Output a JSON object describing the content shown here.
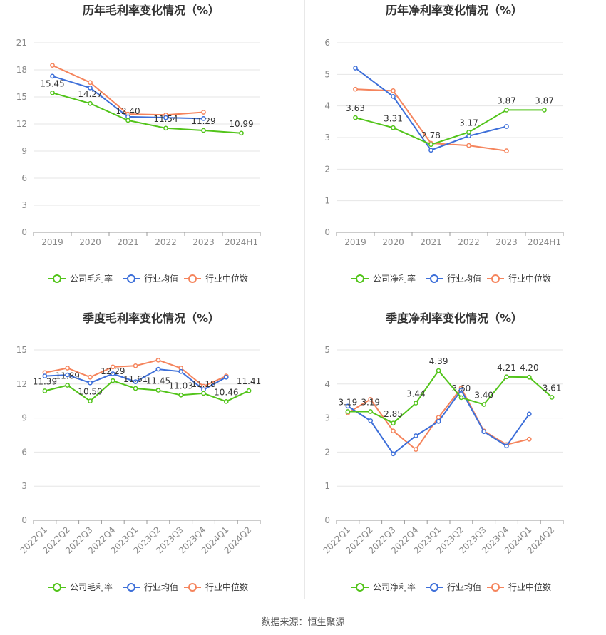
{
  "colors": {
    "company": "#52c41a",
    "industry_avg": "#3d6fd9",
    "industry_median": "#f5845c",
    "grid": "#e6e6e6",
    "axis_text": "#888888",
    "title_text": "#333333",
    "label_text": "#333333"
  },
  "legend_icons": [
    "line-circle-icon",
    "line-circle-icon",
    "line-circle-icon"
  ],
  "source": "数据来源：恒生聚源",
  "chart_data": [
    {
      "type": "line",
      "title": "历年毛利率变化情况（%）",
      "categories": [
        "2019",
        "2020",
        "2021",
        "2022",
        "2023",
        "2024H1"
      ],
      "yticks": [
        "0",
        "3",
        "6",
        "9",
        "12",
        "15",
        "18",
        "21"
      ],
      "ylim": [
        0,
        21
      ],
      "grid": true,
      "legend_position": "bottom",
      "series": [
        {
          "name": "公司毛利率",
          "key": "company",
          "values": [
            15.45,
            14.27,
            12.4,
            11.54,
            11.29,
            10.99
          ],
          "labels": [
            "15.45",
            "14.27",
            "12.40",
            "11.54",
            "11.29",
            "10.99"
          ]
        },
        {
          "name": "行业均值",
          "key": "industry_avg",
          "values": [
            17.3,
            16.0,
            12.8,
            12.7,
            12.6,
            null
          ]
        },
        {
          "name": "行业中位数",
          "key": "industry_median",
          "values": [
            18.5,
            16.6,
            13.1,
            13.0,
            13.3,
            null
          ]
        }
      ]
    },
    {
      "type": "line",
      "title": "历年净利率变化情况（%）",
      "categories": [
        "2019",
        "2020",
        "2021",
        "2022",
        "2023",
        "2024H1"
      ],
      "yticks": [
        "0",
        "1",
        "2",
        "3",
        "4",
        "5",
        "6"
      ],
      "ylim": [
        0,
        6
      ],
      "grid": true,
      "legend_position": "bottom",
      "series": [
        {
          "name": "公司净利率",
          "key": "company",
          "values": [
            3.63,
            3.31,
            2.78,
            3.17,
            3.87,
            3.87
          ],
          "labels": [
            "3.63",
            "3.31",
            "2.78",
            "3.17",
            "3.87",
            "3.87"
          ]
        },
        {
          "name": "行业均值",
          "key": "industry_avg",
          "values": [
            5.2,
            4.3,
            2.6,
            3.05,
            3.35,
            null
          ]
        },
        {
          "name": "行业中位数",
          "key": "industry_median",
          "values": [
            4.53,
            4.48,
            2.82,
            2.75,
            2.58,
            null
          ]
        }
      ]
    },
    {
      "type": "line",
      "title": "季度毛利率变化情况（%）",
      "categories": [
        "2022Q1",
        "2022Q2",
        "2022Q3",
        "2022Q4",
        "2023Q1",
        "2023Q2",
        "2023Q3",
        "2023Q4",
        "2024Q1",
        "2024Q2"
      ],
      "yticks": [
        "0",
        "3",
        "6",
        "9",
        "12",
        "15"
      ],
      "ylim": [
        0,
        15
      ],
      "grid": true,
      "rotate_ticks": true,
      "legend_position": "bottom",
      "series": [
        {
          "name": "公司毛利率",
          "key": "company",
          "values": [
            11.39,
            11.89,
            10.5,
            12.29,
            11.61,
            11.45,
            11.03,
            11.18,
            10.46,
            11.41
          ],
          "labels": [
            "11.39",
            "11.89",
            "10.50",
            "12.29",
            "11.61",
            "11.45",
            "11.03",
            "11.18",
            "10.46",
            "11.41"
          ]
        },
        {
          "name": "行业均值",
          "key": "industry_avg",
          "values": [
            12.7,
            12.8,
            12.1,
            12.9,
            12.2,
            13.3,
            13.1,
            11.5,
            12.6,
            null
          ]
        },
        {
          "name": "行业中位数",
          "key": "industry_median",
          "values": [
            13.0,
            13.4,
            12.6,
            13.5,
            13.6,
            14.1,
            13.4,
            11.8,
            12.7,
            null
          ]
        }
      ]
    },
    {
      "type": "line",
      "title": "季度净利率变化情况（%）",
      "categories": [
        "2022Q1",
        "2022Q2",
        "2022Q3",
        "2022Q4",
        "2023Q1",
        "2023Q2",
        "2023Q3",
        "2023Q4",
        "2024Q1",
        "2024Q2"
      ],
      "yticks": [
        "0",
        "1",
        "2",
        "3",
        "4",
        "5"
      ],
      "ylim": [
        0,
        5
      ],
      "grid": true,
      "rotate_ticks": true,
      "legend_position": "bottom",
      "series": [
        {
          "name": "公司净利率",
          "key": "company",
          "values": [
            3.19,
            3.19,
            2.85,
            3.44,
            4.39,
            3.6,
            3.4,
            4.21,
            4.2,
            3.61
          ],
          "labels": [
            "3.19",
            "3.19",
            "2.85",
            "3.44",
            "4.39",
            "3.60",
            "3.40",
            "4.21",
            "4.20",
            "3.61"
          ]
        },
        {
          "name": "行业均值",
          "key": "industry_avg",
          "values": [
            3.35,
            2.92,
            1.95,
            2.48,
            2.9,
            3.82,
            2.6,
            2.18,
            3.12,
            null
          ]
        },
        {
          "name": "行业中位数",
          "key": "industry_median",
          "values": [
            3.15,
            3.55,
            2.62,
            2.08,
            3.02,
            3.88,
            2.62,
            2.22,
            2.38,
            null
          ]
        }
      ]
    }
  ]
}
